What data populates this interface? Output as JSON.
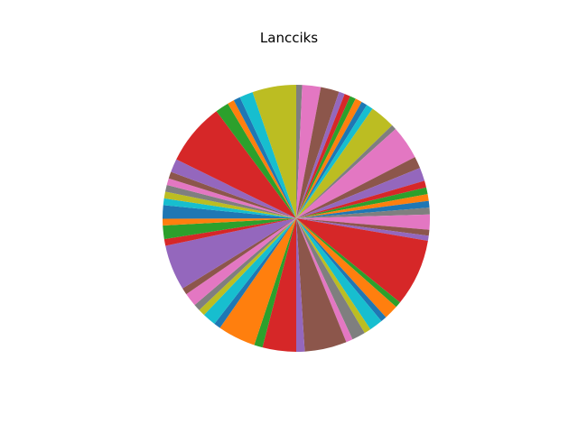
{
  "chart_data": {
    "type": "pie",
    "title": "Lancciks",
    "start_angle_deg": 90,
    "direction": "clockwise",
    "palette": [
      "#1f77b4",
      "#ff7f0e",
      "#2ca02c",
      "#d62728",
      "#9467bd",
      "#8c564b",
      "#e377c2",
      "#7f7f7f",
      "#bcbd22",
      "#17becf"
    ],
    "slices": [
      {
        "value": 0.7,
        "color": "#7f7f7f"
      },
      {
        "value": 2.2,
        "color": "#e377c2"
      },
      {
        "value": 2.2,
        "color": "#8c564b"
      },
      {
        "value": 0.7,
        "color": "#9467bd"
      },
      {
        "value": 0.7,
        "color": "#d62728"
      },
      {
        "value": 0.7,
        "color": "#2ca02c"
      },
      {
        "value": 0.8,
        "color": "#ff7f0e"
      },
      {
        "value": 0.7,
        "color": "#1f77b4"
      },
      {
        "value": 0.8,
        "color": "#17becf"
      },
      {
        "value": 3.0,
        "color": "#bcbd22"
      },
      {
        "value": 0.6,
        "color": "#7f7f7f"
      },
      {
        "value": 4.0,
        "color": "#e377c2"
      },
      {
        "value": 1.4,
        "color": "#8c564b"
      },
      {
        "value": 1.6,
        "color": "#9467bd"
      },
      {
        "value": 0.8,
        "color": "#d62728"
      },
      {
        "value": 0.8,
        "color": "#2ca02c"
      },
      {
        "value": 0.8,
        "color": "#ff7f0e"
      },
      {
        "value": 0.8,
        "color": "#1f77b4"
      },
      {
        "value": 0.8,
        "color": "#7f7f7f"
      },
      {
        "value": 1.8,
        "color": "#e377c2"
      },
      {
        "value": 0.7,
        "color": "#8c564b"
      },
      {
        "value": 0.6,
        "color": "#9467bd"
      },
      {
        "value": 8.0,
        "color": "#d62728"
      },
      {
        "value": 0.7,
        "color": "#2ca02c"
      },
      {
        "value": 1.7,
        "color": "#ff7f0e"
      },
      {
        "value": 0.7,
        "color": "#1f77b4"
      },
      {
        "value": 1.6,
        "color": "#17becf"
      },
      {
        "value": 0.8,
        "color": "#bcbd22"
      },
      {
        "value": 1.6,
        "color": "#7f7f7f"
      },
      {
        "value": 0.8,
        "color": "#e377c2"
      },
      {
        "value": 5.0,
        "color": "#8c564b"
      },
      {
        "value": 1.0,
        "color": "#9467bd"
      },
      {
        "value": 4.0,
        "color": "#d62728"
      },
      {
        "value": 1.0,
        "color": "#2ca02c"
      },
      {
        "value": 4.5,
        "color": "#ff7f0e"
      },
      {
        "value": 0.8,
        "color": "#1f77b4"
      },
      {
        "value": 1.6,
        "color": "#17becf"
      },
      {
        "value": 0.8,
        "color": "#bcbd22"
      },
      {
        "value": 0.8,
        "color": "#7f7f7f"
      },
      {
        "value": 1.6,
        "color": "#e377c2"
      },
      {
        "value": 0.8,
        "color": "#8c564b"
      },
      {
        "value": 5.4,
        "color": "#9467bd"
      },
      {
        "value": 0.8,
        "color": "#d62728"
      },
      {
        "value": 1.6,
        "color": "#2ca02c"
      },
      {
        "value": 0.8,
        "color": "#ff7f0e"
      },
      {
        "value": 1.6,
        "color": "#1f77b4"
      },
      {
        "value": 0.8,
        "color": "#17becf"
      },
      {
        "value": 0.8,
        "color": "#bcbd22"
      },
      {
        "value": 0.8,
        "color": "#7f7f7f"
      },
      {
        "value": 0.8,
        "color": "#e377c2"
      },
      {
        "value": 0.8,
        "color": "#8c564b"
      },
      {
        "value": 1.6,
        "color": "#9467bd"
      },
      {
        "value": 7.4,
        "color": "#d62728"
      },
      {
        "value": 1.6,
        "color": "#2ca02c"
      },
      {
        "value": 0.8,
        "color": "#ff7f0e"
      },
      {
        "value": 0.8,
        "color": "#1f77b4"
      },
      {
        "value": 1.6,
        "color": "#17becf"
      },
      {
        "value": 5.2,
        "color": "#bcbd22"
      }
    ]
  }
}
